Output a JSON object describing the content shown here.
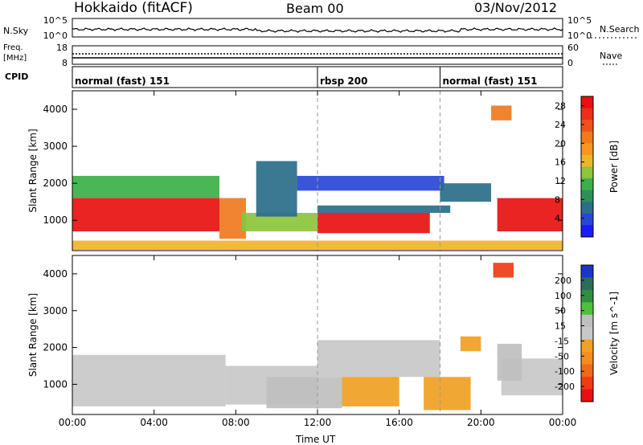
{
  "header": {
    "station": "Hokkaido (fitACF)",
    "beam": "Beam 00",
    "date": "03/Nov/2012"
  },
  "noise_panel": {
    "left_label": "N.Sky",
    "right_label": "N.Search",
    "left_ticks": [
      "10^5",
      "10^0"
    ],
    "right_ticks": [
      "10^5",
      "10^0"
    ]
  },
  "freq_panel": {
    "left_label_1": "Freq.",
    "left_label_2": "[MHz]",
    "right_label": "Nave",
    "left_ticks": [
      "18",
      "8"
    ],
    "right_ticks": [
      "60",
      "0"
    ]
  },
  "cpid": {
    "label": "CPID",
    "segments": [
      {
        "name": "normal (fast) 151",
        "start_hour": 0,
        "end_hour": 12
      },
      {
        "name": "rbsp 200",
        "start_hour": 12,
        "end_hour": 18
      },
      {
        "name": "normal (fast) 151",
        "start_hour": 18,
        "end_hour": 24
      }
    ]
  },
  "xaxis": {
    "label": "Time UT",
    "ticks": [
      "00:00",
      "04:00",
      "08:00",
      "12:00",
      "16:00",
      "20:00",
      "00:00"
    ]
  },
  "chart_data": [
    {
      "type": "heatmap",
      "title": "Power",
      "ylabel": "Slant Range [km]",
      "yticks": [
        "1000",
        "2000",
        "3000",
        "4000"
      ],
      "ylim": [
        180,
        4500
      ],
      "xlim_hours": [
        0,
        24
      ],
      "colorbar": {
        "label": "Power [dB]",
        "ticks": [
          "4",
          "8",
          "12",
          "16",
          "20",
          "24",
          "28"
        ],
        "range": [
          0,
          30
        ],
        "colors": [
          "#1a1aff",
          "#2846d8",
          "#2a6e8a",
          "#2f8f58",
          "#3cb048",
          "#8cc43c",
          "#f0b428",
          "#f59622",
          "#f07a1e",
          "#f0501c",
          "#ee2e18",
          "#e81010"
        ]
      },
      "regions": [
        {
          "t0": 0.0,
          "t1": 7.2,
          "r0": 700,
          "r1": 1600,
          "value": 28
        },
        {
          "t0": 0.0,
          "t1": 7.2,
          "r0": 1600,
          "r1": 2200,
          "value": 12
        },
        {
          "t0": 7.2,
          "t1": 8.5,
          "r0": 500,
          "r1": 1600,
          "value": 22
        },
        {
          "t0": 8.3,
          "t1": 12.0,
          "r0": 700,
          "r1": 1200,
          "value": 14
        },
        {
          "t0": 9.0,
          "t1": 11.0,
          "r0": 1100,
          "r1": 2600,
          "value": 5
        },
        {
          "t0": 11.0,
          "t1": 18.2,
          "r0": 1800,
          "r1": 2200,
          "value": 4
        },
        {
          "t0": 12.0,
          "t1": 17.5,
          "r0": 650,
          "r1": 1200,
          "value": 28
        },
        {
          "t0": 12.0,
          "t1": 18.5,
          "r0": 1200,
          "r1": 1400,
          "value": 6
        },
        {
          "t0": 18.0,
          "t1": 20.5,
          "r0": 1500,
          "r1": 2000,
          "value": 6
        },
        {
          "t0": 20.8,
          "t1": 24.0,
          "r0": 700,
          "r1": 1600,
          "value": 28
        },
        {
          "t0": 20.5,
          "t1": 21.5,
          "r0": 3700,
          "r1": 4100,
          "value": 22
        },
        {
          "t0": 0.0,
          "t1": 24.0,
          "r0": 200,
          "r1": 450,
          "value": 16
        }
      ]
    },
    {
      "type": "heatmap",
      "title": "Velocity",
      "ylabel": "Slant Range [km]",
      "yticks": [
        "1000",
        "2000",
        "3000",
        "4000"
      ],
      "ylim": [
        180,
        4500
      ],
      "xlim_hours": [
        0,
        24
      ],
      "colorbar": {
        "label": "Velocity [m s^-1]",
        "ticks": [
          "200",
          "100",
          "50",
          "15",
          "-15",
          "-50",
          "-100",
          "-200"
        ],
        "range": [
          -250,
          250
        ],
        "colors": [
          "#1a36c8",
          "#2c6c5a",
          "#2f8f3c",
          "#4cc23c",
          "#bfbfbf",
          "#c8c8c8",
          "#f0a022",
          "#f58c1e",
          "#f06a1a",
          "#ee3c14",
          "#e81010"
        ]
      },
      "regions": [
        {
          "t0": 0.0,
          "t1": 7.5,
          "r0": 400,
          "r1": 1800,
          "value": 0
        },
        {
          "t0": 7.5,
          "t1": 12.0,
          "r0": 450,
          "r1": 1500,
          "value": 0
        },
        {
          "t0": 12.0,
          "t1": 18.0,
          "r0": 1200,
          "r1": 2200,
          "value": 0
        },
        {
          "t0": 9.5,
          "t1": 13.2,
          "r0": 350,
          "r1": 1200,
          "value": 40
        },
        {
          "t0": 13.2,
          "t1": 16.0,
          "r0": 400,
          "r1": 1200,
          "value": -60
        },
        {
          "t0": 17.2,
          "t1": 19.5,
          "r0": 300,
          "r1": 1200,
          "value": -60
        },
        {
          "t0": 19.0,
          "t1": 20.0,
          "r0": 1900,
          "r1": 2300,
          "value": -60
        },
        {
          "t0": 21.0,
          "t1": 24.0,
          "r0": 700,
          "r1": 1700,
          "value": 0
        },
        {
          "t0": 20.8,
          "t1": 22.0,
          "r0": 1100,
          "r1": 2100,
          "value": 40
        },
        {
          "t0": 20.6,
          "t1": 21.6,
          "r0": 3900,
          "r1": 4300,
          "value": -200
        }
      ]
    }
  ]
}
